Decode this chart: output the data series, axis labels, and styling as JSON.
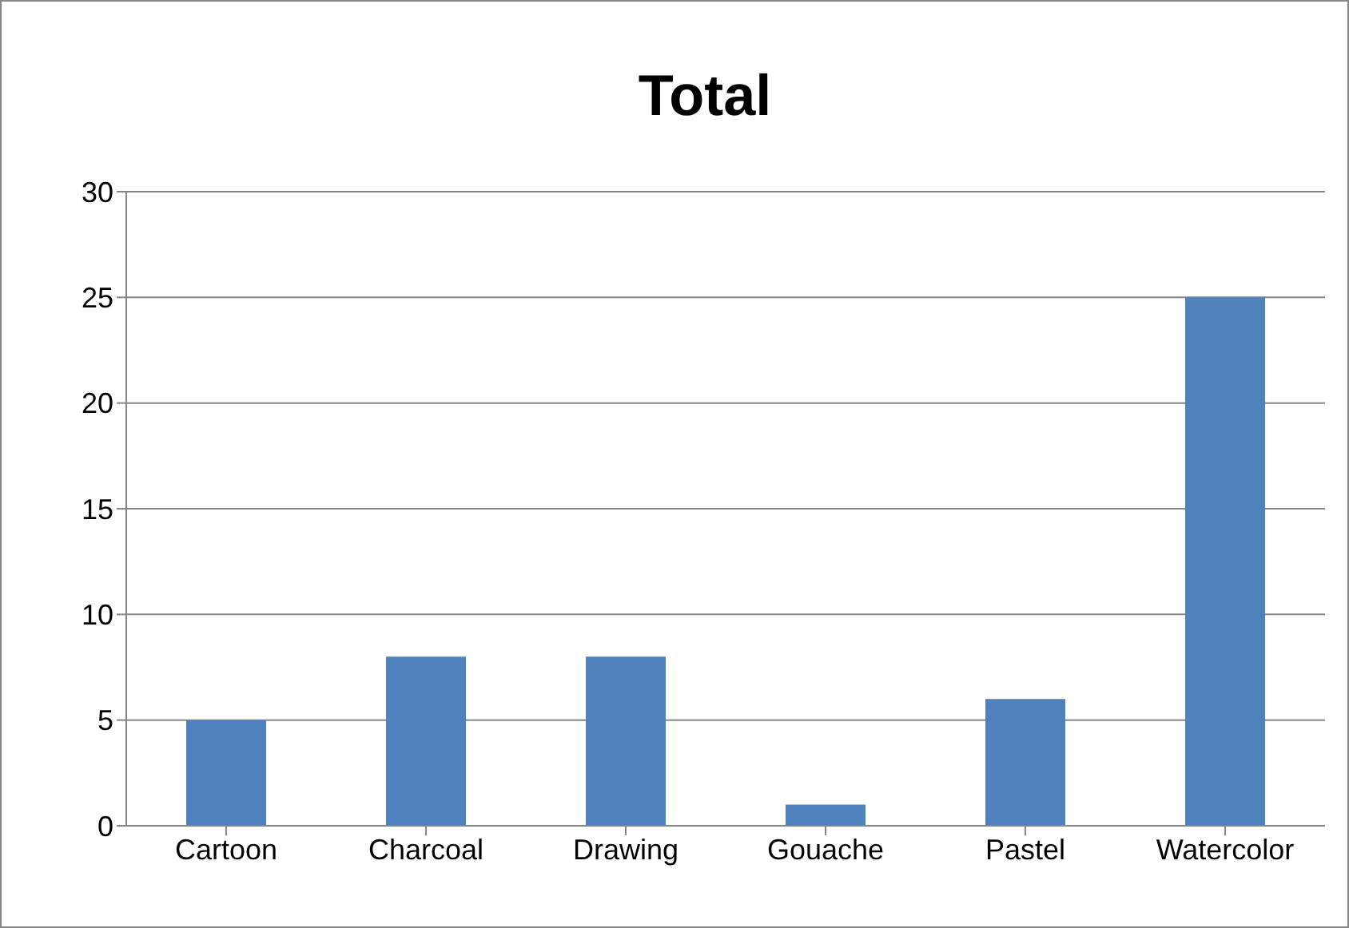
{
  "chart_data": {
    "type": "bar",
    "title": "Total",
    "categories": [
      "Cartoon",
      "Charcoal",
      "Drawing",
      "Gouache",
      "Pastel",
      "Watercolor"
    ],
    "values": [
      5,
      8,
      8,
      1,
      6,
      25
    ],
    "color": "#4f81bd",
    "ylim": [
      0,
      30
    ],
    "yticks": [
      0,
      5,
      10,
      15,
      20,
      25,
      30
    ],
    "grid": "y",
    "legend": false
  }
}
